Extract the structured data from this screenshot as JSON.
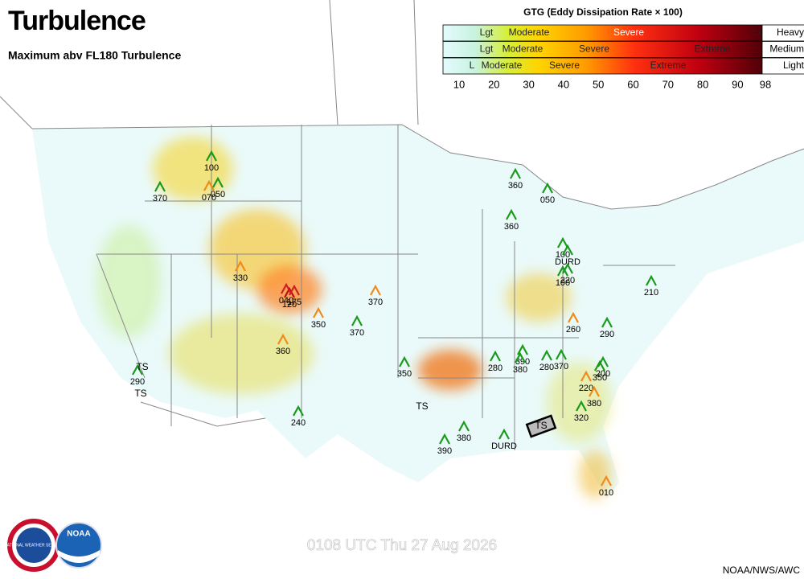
{
  "header": {
    "title": "Turbulence",
    "subtitle": "Maximum abv FL180 Turbulence"
  },
  "legend": {
    "title": "GTG (Eddy Dissipation Rate × 100)",
    "rows": [
      {
        "labels": [
          "Lgt",
          "Moderate",
          "Severe",
          "Ex"
        ],
        "size": "Heavy"
      },
      {
        "labels": [
          "Lgt",
          "Moderate",
          "Severe",
          "Extreme"
        ],
        "size": "Medium"
      },
      {
        "labels": [
          "L",
          "Moderate",
          "Severe",
          "Extreme"
        ],
        "size": "Light"
      }
    ],
    "scale_ticks": [
      10,
      20,
      30,
      40,
      50,
      60,
      70,
      80,
      90,
      98
    ]
  },
  "reports": [
    {
      "label": "100",
      "color": "#1a9a1a"
    },
    {
      "label": "370",
      "color": "#1a9a1a"
    },
    {
      "label": "070",
      "color": "#f08a1c"
    },
    {
      "label": "050",
      "color": "#1a9a1a"
    },
    {
      "label": "360",
      "color": "#1a9a1a"
    },
    {
      "label": "050",
      "color": "#1a9a1a"
    },
    {
      "label": "360",
      "color": "#1a9a1a"
    },
    {
      "label": "100",
      "color": "#1a9a1a"
    },
    {
      "label": "DURD",
      "color": "#1a9a1a"
    },
    {
      "label": "220",
      "color": "#1a9a1a"
    },
    {
      "label": "100",
      "color": "#1a9a1a"
    },
    {
      "label": "210",
      "color": "#1a9a1a"
    },
    {
      "label": "330",
      "color": "#f08a1c"
    },
    {
      "label": "120",
      "color": "#b01010"
    },
    {
      "label": "040",
      "color": "#d02020"
    },
    {
      "label": "175",
      "color": "#d02020"
    },
    {
      "label": "370",
      "color": "#f08a1c"
    },
    {
      "label": "350",
      "color": "#f08a1c"
    },
    {
      "label": "370",
      "color": "#1a9a1a"
    },
    {
      "label": "260",
      "color": "#f08a1c"
    },
    {
      "label": "290",
      "color": "#1a9a1a"
    },
    {
      "label": "360",
      "color": "#f08a1c"
    },
    {
      "label": "350",
      "color": "#1a9a1a"
    },
    {
      "label": "280",
      "color": "#1a9a1a"
    },
    {
      "label": "390",
      "color": "#1a9a1a"
    },
    {
      "label": "380",
      "color": "#1a9a1a"
    },
    {
      "label": "280",
      "color": "#1a9a1a"
    },
    {
      "label": "370",
      "color": "#1a9a1a"
    },
    {
      "label": "350",
      "color": "#1a9a1a"
    },
    {
      "label": "200",
      "color": "#1a9a1a"
    },
    {
      "label": "220",
      "color": "#f08a1c"
    },
    {
      "label": "380",
      "color": "#f08a1c"
    },
    {
      "label": "320",
      "color": "#1a9a1a"
    },
    {
      "label": "290",
      "color": "#1a9a1a"
    },
    {
      "label": "240",
      "color": "#1a9a1a"
    },
    {
      "label": "380",
      "color": "#1a9a1a"
    },
    {
      "label": "390",
      "color": "#1a9a1a"
    },
    {
      "label": "DURD",
      "color": "#1a9a1a"
    },
    {
      "label": "010",
      "color": "#f08a1c"
    }
  ],
  "storms": [
    "TS",
    "TS",
    "TS",
    "TS"
  ],
  "footer": {
    "timestamp": "0108 UTC Thu 27 Aug 2026",
    "credit": "NOAA/NWS/AWC",
    "nws_logo": "NATIONAL WEATHER SERVICE",
    "noaa_logo": "NOAA"
  }
}
